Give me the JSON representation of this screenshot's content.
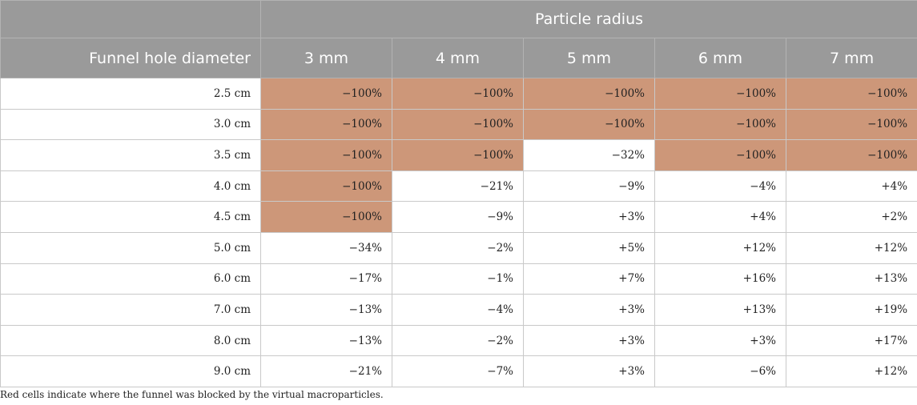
{
  "header": {
    "group_label": "Particle radius",
    "row_label": "Funnel hole diameter",
    "radii": [
      "3 mm",
      "4 mm",
      "5 mm",
      "6 mm",
      "7 mm"
    ]
  },
  "colors": {
    "blocked": "#cd9779",
    "header": "#9a9a9a"
  },
  "rows": [
    {
      "diameter": "2.5 cm",
      "values": [
        "−100%",
        "−100%",
        "−100%",
        "−100%",
        "−100%"
      ],
      "blocked": [
        true,
        true,
        true,
        true,
        true
      ]
    },
    {
      "diameter": "3.0 cm",
      "values": [
        "−100%",
        "−100%",
        "−100%",
        "−100%",
        "−100%"
      ],
      "blocked": [
        true,
        true,
        true,
        true,
        true
      ]
    },
    {
      "diameter": "3.5 cm",
      "values": [
        "−100%",
        "−100%",
        "−32%",
        "−100%",
        "−100%"
      ],
      "blocked": [
        true,
        true,
        false,
        true,
        true
      ]
    },
    {
      "diameter": "4.0 cm",
      "values": [
        "−100%",
        "−21%",
        "−9%",
        "−4%",
        "+4%"
      ],
      "blocked": [
        true,
        false,
        false,
        false,
        false
      ]
    },
    {
      "diameter": "4.5 cm",
      "values": [
        "−100%",
        "−9%",
        "+3%",
        "+4%",
        "+2%"
      ],
      "blocked": [
        true,
        false,
        false,
        false,
        false
      ]
    },
    {
      "diameter": "5.0 cm",
      "values": [
        "−34%",
        "−2%",
        "+5%",
        "+12%",
        "+12%"
      ],
      "blocked": [
        false,
        false,
        false,
        false,
        false
      ]
    },
    {
      "diameter": "6.0 cm",
      "values": [
        "−17%",
        "−1%",
        "+7%",
        "+16%",
        "+13%"
      ],
      "blocked": [
        false,
        false,
        false,
        false,
        false
      ]
    },
    {
      "diameter": "7.0 cm",
      "values": [
        "−13%",
        "−4%",
        "+3%",
        "+13%",
        "+19%"
      ],
      "blocked": [
        false,
        false,
        false,
        false,
        false
      ]
    },
    {
      "diameter": "8.0 cm",
      "values": [
        "−13%",
        "−2%",
        "+3%",
        "+3%",
        "+17%"
      ],
      "blocked": [
        false,
        false,
        false,
        false,
        false
      ]
    },
    {
      "diameter": "9.0 cm",
      "values": [
        "−21%",
        "−7%",
        "+3%",
        "−6%",
        "+12%"
      ],
      "blocked": [
        false,
        false,
        false,
        false,
        false
      ]
    }
  ],
  "footnote": "Red cells indicate where the funnel was blocked by the virtual macroparticles."
}
